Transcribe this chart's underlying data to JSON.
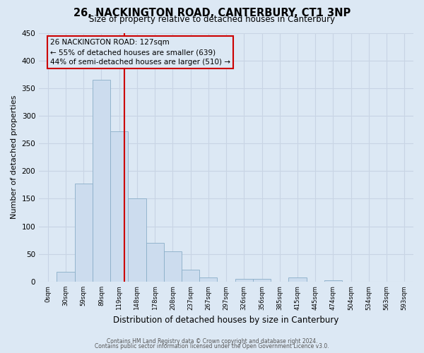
{
  "title": "26, NACKINGTON ROAD, CANTERBURY, CT1 3NP",
  "subtitle": "Size of property relative to detached houses in Canterbury",
  "xlabel": "Distribution of detached houses by size in Canterbury",
  "ylabel": "Number of detached properties",
  "bar_color": "#ccdcee",
  "bar_edgecolor": "#8aaec8",
  "bin_labels": [
    "0sqm",
    "30sqm",
    "59sqm",
    "89sqm",
    "119sqm",
    "148sqm",
    "178sqm",
    "208sqm",
    "237sqm",
    "267sqm",
    "297sqm",
    "326sqm",
    "356sqm",
    "385sqm",
    "415sqm",
    "445sqm",
    "474sqm",
    "504sqm",
    "534sqm",
    "563sqm",
    "593sqm"
  ],
  "bar_heights": [
    0,
    18,
    177,
    365,
    272,
    150,
    70,
    55,
    22,
    8,
    0,
    5,
    5,
    0,
    8,
    0,
    2,
    0,
    0,
    0,
    0
  ],
  "ylim": [
    0,
    450
  ],
  "yticks": [
    0,
    50,
    100,
    150,
    200,
    250,
    300,
    350,
    400,
    450
  ],
  "vline_x": 4.27,
  "annotation_title": "26 NACKINGTON ROAD: 127sqm",
  "annotation_line1": "← 55% of detached houses are smaller (639)",
  "annotation_line2": "44% of semi-detached houses are larger (510) →",
  "annotation_box_color": "#cc0000",
  "vline_color": "#cc0000",
  "grid_color": "#c8d4e4",
  "background_color": "#dce8f4",
  "footer1": "Contains HM Land Registry data © Crown copyright and database right 2024.",
  "footer2": "Contains public sector information licensed under the Open Government Licence v3.0."
}
